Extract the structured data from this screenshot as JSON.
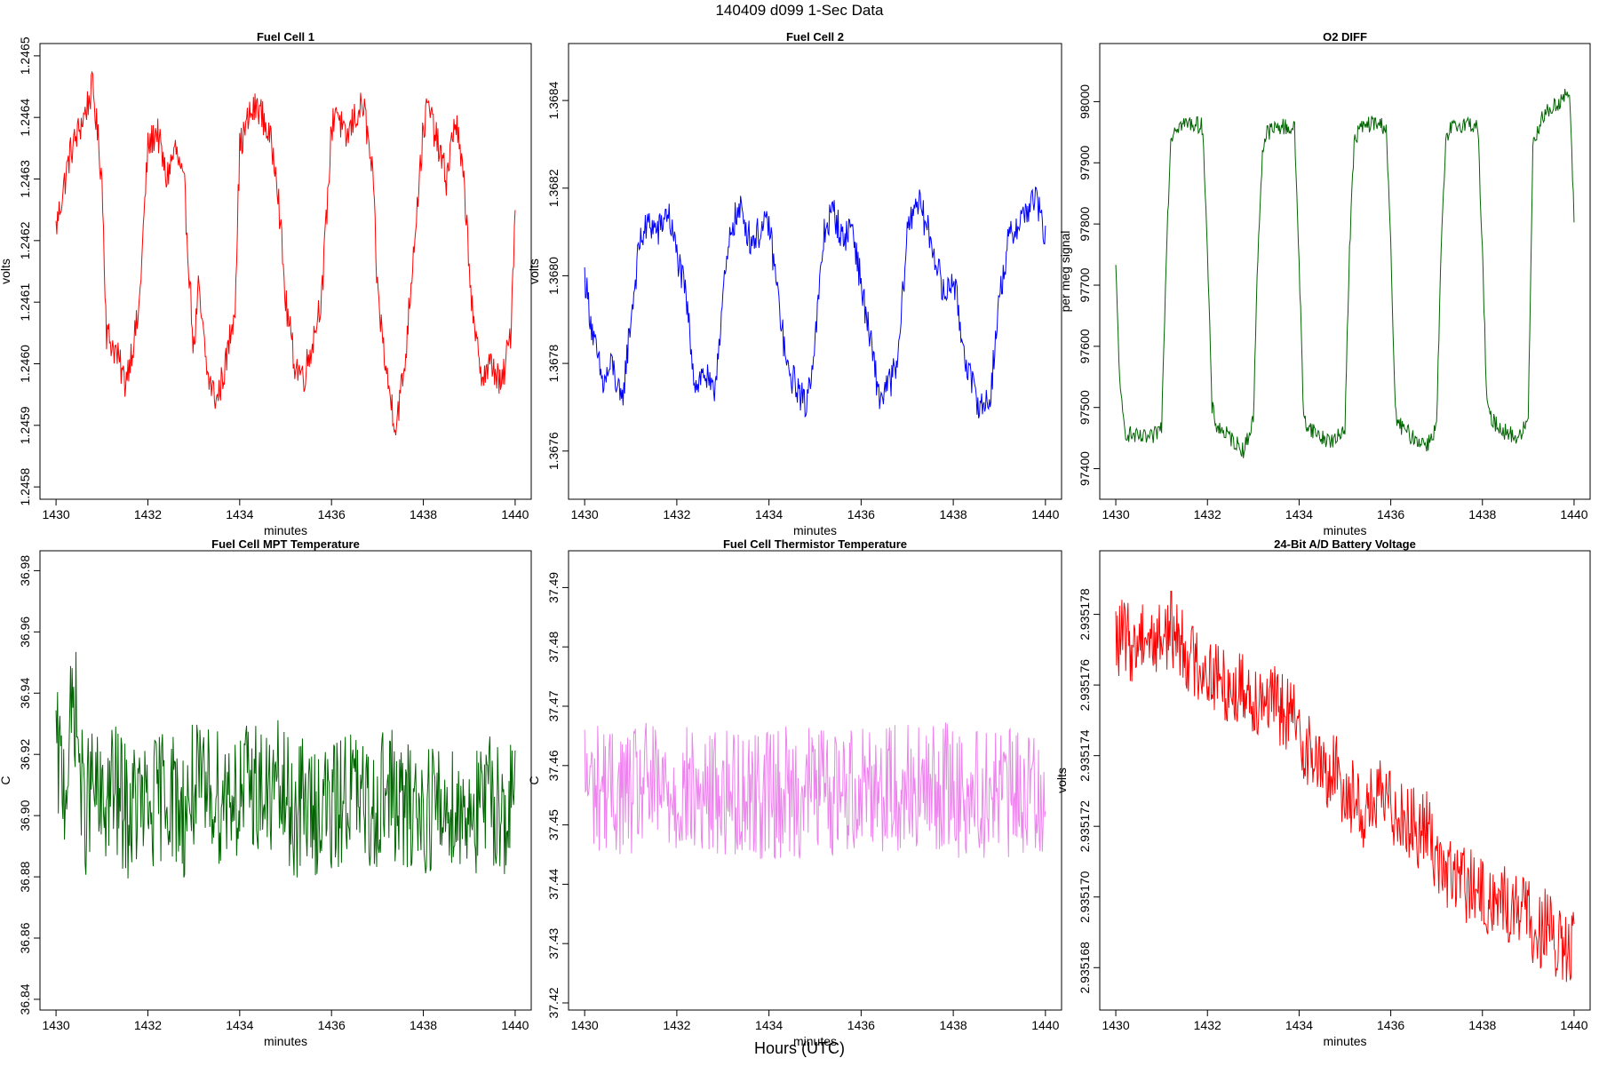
{
  "figure": {
    "title": "140409   d099   1-Sec Data",
    "global_xlabel": "Hours (UTC)"
  },
  "chart_data": [
    {
      "type": "line",
      "title": "Fuel Cell 1",
      "xlabel": "minutes",
      "ylabel": "volts",
      "color": "#ff0000",
      "xlim": [
        1429.65,
        1440.35
      ],
      "ylim": [
        1.24578,
        1.24652
      ],
      "xticks": [
        1430,
        1432,
        1434,
        1436,
        1438,
        1440
      ],
      "yticks": [
        1.2458,
        1.2459,
        1.246,
        1.2461,
        1.2462,
        1.2463,
        1.2464,
        1.2465
      ],
      "ytick_decimals": 4,
      "series": [
        {
          "name": "Fuel Cell 1",
          "x": [
            1430.0,
            1430.3,
            1430.6,
            1430.8,
            1431.0,
            1431.1,
            1431.3,
            1431.5,
            1431.7,
            1431.8,
            1432.0,
            1432.2,
            1432.4,
            1432.6,
            1432.8,
            1433.0,
            1433.1,
            1433.3,
            1433.5,
            1433.7,
            1433.9,
            1434.0,
            1434.2,
            1434.4,
            1434.6,
            1434.8,
            1435.0,
            1435.2,
            1435.4,
            1435.6,
            1435.8,
            1436.0,
            1436.1,
            1436.3,
            1436.5,
            1436.7,
            1436.9,
            1437.0,
            1437.2,
            1437.4,
            1437.6,
            1437.8,
            1438.0,
            1438.1,
            1438.3,
            1438.5,
            1438.7,
            1438.9,
            1439.1,
            1439.3,
            1439.5,
            1439.7,
            1439.9,
            1440.0
          ],
          "values": [
            1.24622,
            1.24634,
            1.2464,
            1.24645,
            1.2463,
            1.24605,
            1.24602,
            1.24597,
            1.24604,
            1.24608,
            1.24635,
            1.24638,
            1.2463,
            1.24635,
            1.24628,
            1.24602,
            1.24612,
            1.24598,
            1.24594,
            1.246,
            1.2461,
            1.24635,
            1.2464,
            1.24642,
            1.24638,
            1.24632,
            1.2461,
            1.246,
            1.24598,
            1.24604,
            1.24612,
            1.24638,
            1.24642,
            1.24636,
            1.2464,
            1.24642,
            1.2463,
            1.24612,
            1.24598,
            1.2459,
            1.246,
            1.2462,
            1.24638,
            1.24642,
            1.24636,
            1.2463,
            1.2464,
            1.24628,
            1.24605,
            1.24598,
            1.246,
            1.24596,
            1.24605,
            1.24625
          ]
        }
      ]
    },
    {
      "type": "line",
      "title": "Fuel Cell 2",
      "xlabel": "minutes",
      "ylabel": "volts",
      "color": "#0000ff",
      "xlim": [
        1429.65,
        1440.35
      ],
      "ylim": [
        1.36749,
        1.36853
      ],
      "xticks": [
        1430,
        1432,
        1434,
        1436,
        1438,
        1440
      ],
      "yticks": [
        1.3676,
        1.3678,
        1.368,
        1.3682,
        1.3684
      ],
      "ytick_decimals": 4,
      "series": [
        {
          "name": "Fuel Cell 2",
          "x": [
            1430.0,
            1430.2,
            1430.4,
            1430.6,
            1430.8,
            1431.0,
            1431.2,
            1431.4,
            1431.6,
            1431.8,
            1432.0,
            1432.2,
            1432.4,
            1432.6,
            1432.8,
            1433.0,
            1433.2,
            1433.4,
            1433.6,
            1433.8,
            1434.0,
            1434.2,
            1434.4,
            1434.6,
            1434.8,
            1435.0,
            1435.2,
            1435.4,
            1435.6,
            1435.8,
            1436.0,
            1436.2,
            1436.4,
            1436.6,
            1436.8,
            1437.0,
            1437.2,
            1437.4,
            1437.6,
            1437.8,
            1438.0,
            1438.2,
            1438.4,
            1438.6,
            1438.8,
            1439.0,
            1439.2,
            1439.4,
            1439.6,
            1439.8,
            1440.0
          ],
          "values": [
            1.368,
            1.36785,
            1.36775,
            1.3678,
            1.3677,
            1.3679,
            1.36808,
            1.36812,
            1.3681,
            1.36815,
            1.36805,
            1.36795,
            1.36775,
            1.36778,
            1.36772,
            1.36795,
            1.36812,
            1.36815,
            1.36808,
            1.3681,
            1.36812,
            1.36795,
            1.36778,
            1.36775,
            1.3677,
            1.36785,
            1.3681,
            1.36815,
            1.36808,
            1.36812,
            1.36798,
            1.36785,
            1.36772,
            1.36775,
            1.3678,
            1.3681,
            1.36818,
            1.36812,
            1.36805,
            1.36795,
            1.368,
            1.36785,
            1.36775,
            1.3677,
            1.36772,
            1.36795,
            1.36808,
            1.36812,
            1.36815,
            1.36818,
            1.36808
          ]
        }
      ]
    },
    {
      "type": "line",
      "title": "O2 DIFF",
      "xlabel": "minutes",
      "ylabel": "per meg signal",
      "color": "#006400",
      "xlim": [
        1429.65,
        1440.35
      ],
      "ylim": [
        97350,
        98095
      ],
      "xticks": [
        1430,
        1432,
        1434,
        1436,
        1438,
        1440
      ],
      "yticks": [
        97400,
        97500,
        97600,
        97700,
        97800,
        97900,
        98000
      ],
      "ytick_decimals": 0,
      "series": [
        {
          "name": "O2 DIFF",
          "x": [
            1430.0,
            1430.1,
            1430.2,
            1430.5,
            1430.8,
            1431.0,
            1431.1,
            1431.2,
            1431.3,
            1431.6,
            1431.9,
            1432.0,
            1432.1,
            1432.2,
            1432.5,
            1432.8,
            1433.0,
            1433.1,
            1433.2,
            1433.3,
            1433.6,
            1433.9,
            1434.0,
            1434.1,
            1434.2,
            1434.5,
            1434.8,
            1435.0,
            1435.1,
            1435.2,
            1435.3,
            1435.6,
            1435.9,
            1436.0,
            1436.1,
            1436.2,
            1436.5,
            1436.8,
            1437.0,
            1437.1,
            1437.2,
            1437.3,
            1437.6,
            1437.9,
            1438.0,
            1438.1,
            1438.2,
            1438.5,
            1438.8,
            1439.0,
            1439.1,
            1439.3,
            1439.6,
            1439.9,
            1440.0
          ],
          "values": [
            97725,
            97520,
            97460,
            97450,
            97450,
            97470,
            97750,
            97940,
            97960,
            97965,
            97960,
            97750,
            97500,
            97470,
            97450,
            97430,
            97480,
            97750,
            97920,
            97950,
            97960,
            97955,
            97740,
            97480,
            97470,
            97450,
            97445,
            97470,
            97760,
            97930,
            97955,
            97965,
            97960,
            97760,
            97490,
            97470,
            97450,
            97440,
            97470,
            97760,
            97930,
            97955,
            97965,
            97960,
            97750,
            97500,
            97480,
            97460,
            97450,
            97480,
            97930,
            97975,
            97995,
            98015,
            97805
          ]
        }
      ]
    },
    {
      "type": "line",
      "title": "Fuel Cell MPT Temperature",
      "xlabel": "minutes",
      "ylabel": "C",
      "color": "#006400",
      "xlim": [
        1429.65,
        1440.35
      ],
      "ylim": [
        36.8365,
        36.9865
      ],
      "xticks": [
        1430,
        1432,
        1434,
        1436,
        1438,
        1440
      ],
      "yticks": [
        36.84,
        36.86,
        36.88,
        36.9,
        36.92,
        36.94,
        36.96,
        36.98
      ],
      "ytick_decimals": 2,
      "series": [
        {
          "name": "Fuel Cell MPT Temperature",
          "x": [
            1430.0,
            1430.2,
            1430.4,
            1430.6,
            1430.8,
            1431.0,
            1431.2,
            1431.4,
            1431.6,
            1431.8,
            1432.0,
            1432.2,
            1432.4,
            1432.6,
            1432.8,
            1433.0,
            1433.2,
            1433.4,
            1433.6,
            1433.8,
            1434.0,
            1434.2,
            1434.4,
            1434.6,
            1434.8,
            1435.0,
            1435.2,
            1435.4,
            1435.6,
            1435.8,
            1436.0,
            1436.2,
            1436.4,
            1436.6,
            1436.8,
            1437.0,
            1437.2,
            1437.4,
            1437.6,
            1437.8,
            1438.0,
            1438.2,
            1438.4,
            1438.6,
            1438.8,
            1439.0,
            1439.2,
            1439.4,
            1439.6,
            1439.8,
            1440.0
          ],
          "values": [
            36.92,
            36.91,
            36.94,
            36.9,
            36.91,
            36.9,
            36.91,
            36.905,
            36.9,
            36.905,
            36.9,
            36.905,
            36.91,
            36.905,
            36.9,
            36.91,
            36.905,
            36.91,
            36.905,
            36.91,
            36.905,
            36.91,
            36.91,
            36.905,
            36.91,
            36.905,
            36.9,
            36.905,
            36.9,
            36.905,
            36.9,
            36.905,
            36.91,
            36.905,
            36.9,
            36.905,
            36.91,
            36.905,
            36.9,
            36.905,
            36.9,
            36.905,
            36.9,
            36.905,
            36.9,
            36.905,
            36.9,
            36.905,
            36.905,
            36.9,
            36.905
          ]
        }
      ]
    },
    {
      "type": "line",
      "title": "Fuel Cell Thermistor Temperature",
      "xlabel": "minutes",
      "ylabel": "C",
      "color": "#ee82ee",
      "xlim": [
        1429.65,
        1440.35
      ],
      "ylim": [
        37.4188,
        37.4962
      ],
      "xticks": [
        1430,
        1432,
        1434,
        1436,
        1438,
        1440
      ],
      "yticks": [
        37.42,
        37.43,
        37.44,
        37.45,
        37.46,
        37.47,
        37.48,
        37.49
      ],
      "ytick_decimals": 2,
      "series": [
        {
          "name": "Fuel Cell Thermistor Temperature",
          "x": [
            1430.0,
            1430.2,
            1430.4,
            1430.6,
            1430.8,
            1431.0,
            1431.2,
            1431.4,
            1431.6,
            1431.8,
            1432.0,
            1432.2,
            1432.4,
            1432.6,
            1432.8,
            1433.0,
            1433.2,
            1433.4,
            1433.6,
            1433.8,
            1434.0,
            1434.2,
            1434.4,
            1434.6,
            1434.8,
            1435.0,
            1435.2,
            1435.4,
            1435.6,
            1435.8,
            1436.0,
            1436.2,
            1436.4,
            1436.6,
            1436.8,
            1437.0,
            1437.2,
            1437.4,
            1437.6,
            1437.8,
            1438.0,
            1438.2,
            1438.4,
            1438.6,
            1438.8,
            1439.0,
            1439.2,
            1439.4,
            1439.6,
            1439.8,
            1440.0
          ],
          "values": [
            37.458,
            37.456,
            37.457,
            37.455,
            37.456,
            37.455,
            37.456,
            37.457,
            37.455,
            37.456,
            37.455,
            37.456,
            37.455,
            37.454,
            37.456,
            37.455,
            37.456,
            37.455,
            37.456,
            37.455,
            37.456,
            37.455,
            37.456,
            37.455,
            37.456,
            37.457,
            37.456,
            37.455,
            37.457,
            37.456,
            37.457,
            37.458,
            37.456,
            37.457,
            37.456,
            37.457,
            37.456,
            37.455,
            37.456,
            37.457,
            37.456,
            37.455,
            37.456,
            37.455,
            37.456,
            37.456,
            37.455,
            37.456,
            37.455,
            37.456,
            37.456
          ]
        }
      ]
    },
    {
      "type": "line",
      "title": "24-Bit A/D Battery Voltage",
      "xlabel": "minutes",
      "ylabel": "volts",
      "color": "#ff0000",
      "xlim": [
        1429.65,
        1440.35
      ],
      "ylim": [
        2.9351668,
        2.9351798
      ],
      "xticks": [
        1430,
        1432,
        1434,
        1436,
        1438,
        1440
      ],
      "yticks": [
        2.935168,
        2.93517,
        2.935172,
        2.935174,
        2.935176,
        2.935178
      ],
      "ytick_decimals": 6,
      "series": [
        {
          "name": "24-Bit A/D Battery Voltage",
          "x": [
            1430.0,
            1430.2,
            1430.4,
            1430.6,
            1430.8,
            1431.0,
            1431.2,
            1431.4,
            1431.6,
            1431.8,
            1432.0,
            1432.2,
            1432.4,
            1432.6,
            1432.8,
            1433.0,
            1433.2,
            1433.4,
            1433.6,
            1433.8,
            1434.0,
            1434.2,
            1434.4,
            1434.6,
            1434.8,
            1435.0,
            1435.2,
            1435.4,
            1435.6,
            1435.8,
            1436.0,
            1436.2,
            1436.4,
            1436.6,
            1436.8,
            1437.0,
            1437.2,
            1437.4,
            1437.6,
            1437.8,
            1438.0,
            1438.2,
            1438.4,
            1438.6,
            1438.8,
            1439.0,
            1439.2,
            1439.4,
            1439.6,
            1439.8,
            1440.0
          ],
          "values": [
            2.9351772,
            2.9351774,
            2.935177,
            2.9351776,
            2.9351772,
            2.9351774,
            2.9351776,
            2.9351773,
            2.9351768,
            2.9351766,
            2.9351764,
            2.9351762,
            2.935176,
            2.9351758,
            2.935176,
            2.9351756,
            2.9351758,
            2.9351755,
            2.9351753,
            2.9351752,
            2.9351746,
            2.9351742,
            2.9351738,
            2.9351734,
            2.9351736,
            2.935173,
            2.9351728,
            2.9351724,
            2.9351726,
            2.9351728,
            2.9351726,
            2.9351724,
            2.9351722,
            2.9351718,
            2.935172,
            2.9351712,
            2.9351706,
            2.9351706,
            2.9351704,
            2.9351702,
            2.93517,
            2.9351698,
            2.93517,
            2.9351696,
            2.9351698,
            2.9351694,
            2.935169,
            2.9351692,
            2.9351686,
            2.9351684,
            2.9351686
          ]
        }
      ]
    }
  ]
}
